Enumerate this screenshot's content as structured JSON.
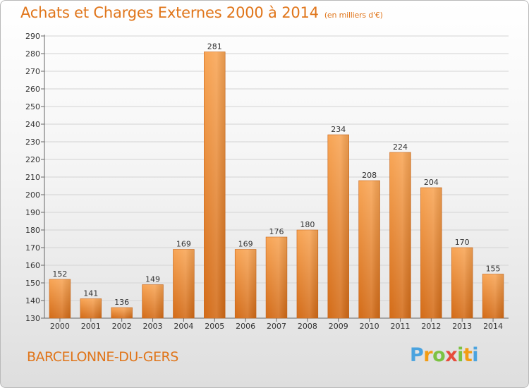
{
  "title": "Achats et Charges Externes 2000 à 2014",
  "subtitle": "(en milliers d'€)",
  "location": "BARCELONNE-DU-GERS",
  "brand": {
    "letters": [
      "P",
      "r",
      "o",
      "x",
      "i",
      "t",
      "i"
    ],
    "colors": [
      "#4aa3df",
      "#f39c12",
      "#7cc242",
      "#e74c3c",
      "#7cc242",
      "#f39c12",
      "#4aa3df"
    ]
  },
  "colors": {
    "accent": "#e0751a",
    "bar_light": "#f6a14f",
    "bar_dark": "#d9701a",
    "grid": "#d0d0d0"
  },
  "chart_data": {
    "type": "bar",
    "categories": [
      "2000",
      "2001",
      "2002",
      "2003",
      "2004",
      "2005",
      "2006",
      "2007",
      "2008",
      "2009",
      "2010",
      "2011",
      "2012",
      "2013",
      "2014"
    ],
    "values": [
      152,
      141,
      136,
      149,
      169,
      281,
      169,
      176,
      180,
      234,
      208,
      224,
      204,
      170,
      155
    ],
    "title": "Achats et Charges Externes 2000 à 2014",
    "subtitle": "(en milliers d'€)",
    "ylim": [
      130,
      290
    ],
    "yticks": [
      130,
      140,
      150,
      160,
      170,
      180,
      190,
      200,
      210,
      220,
      230,
      240,
      250,
      260,
      270,
      280,
      290
    ],
    "grid": true
  }
}
